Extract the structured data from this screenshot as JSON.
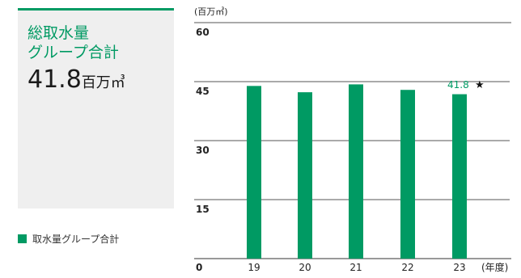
{
  "kpi": {
    "title_line1": "総取水量",
    "title_line2": "グループ合計",
    "value": "41.8",
    "unit": "百万㎥"
  },
  "legend": {
    "label": "取水量グループ合計",
    "color": "#009a63"
  },
  "chart_data": {
    "type": "bar",
    "unit_label": "(百万㎥)",
    "x_unit_label": "(年度)",
    "categories": [
      "19",
      "20",
      "21",
      "22",
      "23"
    ],
    "values": [
      43.9,
      42.3,
      44.3,
      42.9,
      41.8
    ],
    "ylim": [
      0,
      60
    ],
    "yticks": [
      "0",
      "15",
      "30",
      "45",
      "60"
    ],
    "annotation": {
      "category": "23",
      "text": "41.8",
      "mark": "★"
    },
    "bar_color": "#009a63",
    "grid": true
  }
}
